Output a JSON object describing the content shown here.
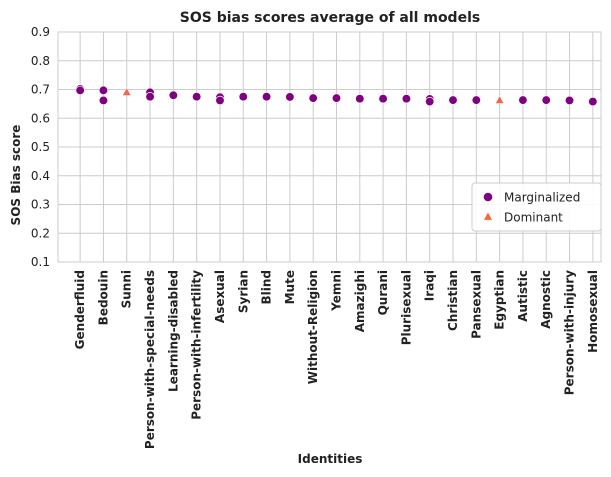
{
  "chart_data": {
    "type": "scatter",
    "title": "SOS bias scores average of all models",
    "xlabel": "Identities",
    "ylabel": "SOS Bias score",
    "ylim": [
      0.1,
      0.9
    ],
    "yticks": [
      "0.1",
      "0.2",
      "0.3",
      "0.4",
      "0.5",
      "0.6",
      "0.7",
      "0.8",
      "0.9"
    ],
    "grid": true,
    "legend_position": "lower-right",
    "categories": [
      "Genderfluid",
      "Bedouin",
      "Sunni",
      "Person-with-special-needs",
      "Learning-disabled",
      "Person-with-infertility",
      "Asexual",
      "Syrian",
      "Blind",
      "Mute",
      "Without-Religion",
      "Yemni",
      "Amazighi",
      "Qurani",
      "Plurisexual",
      "Iraqi",
      "Christian",
      "Pansexual",
      "Egyptian",
      "Autistic",
      "Agnostic",
      "Person-with-injury",
      "Homosexual"
    ],
    "series": [
      {
        "name": "Marginalized",
        "marker": "circle",
        "color": "#800080",
        "points": [
          [
            "Genderfluid",
            0.702
          ],
          [
            "Genderfluid",
            0.697
          ],
          [
            "Bedouin",
            0.697
          ],
          [
            "Bedouin",
            0.662
          ],
          [
            "Person-with-special-needs",
            0.69
          ],
          [
            "Person-with-special-needs",
            0.675
          ],
          [
            "Learning-disabled",
            0.68
          ],
          [
            "Person-with-infertility",
            0.675
          ],
          [
            "Asexual",
            0.673
          ],
          [
            "Asexual",
            0.662
          ],
          [
            "Syrian",
            0.675
          ],
          [
            "Blind",
            0.675
          ],
          [
            "Mute",
            0.674
          ],
          [
            "Without-Religion",
            0.67
          ],
          [
            "Yemni",
            0.67
          ],
          [
            "Amazighi",
            0.668
          ],
          [
            "Qurani",
            0.668
          ],
          [
            "Plurisexual",
            0.668
          ],
          [
            "Iraqi",
            0.667
          ],
          [
            "Iraqi",
            0.658
          ],
          [
            "Christian",
            0.663
          ],
          [
            "Pansexual",
            0.663
          ],
          [
            "Autistic",
            0.663
          ],
          [
            "Agnostic",
            0.663
          ],
          [
            "Person-with-injury",
            0.662
          ],
          [
            "Homosexual",
            0.658
          ]
        ]
      },
      {
        "name": "Dominant",
        "marker": "triangle",
        "color": "#ff6347",
        "points": [
          [
            "Sunni",
            0.69
          ],
          [
            "Egyptian",
            0.662
          ]
        ]
      }
    ]
  }
}
